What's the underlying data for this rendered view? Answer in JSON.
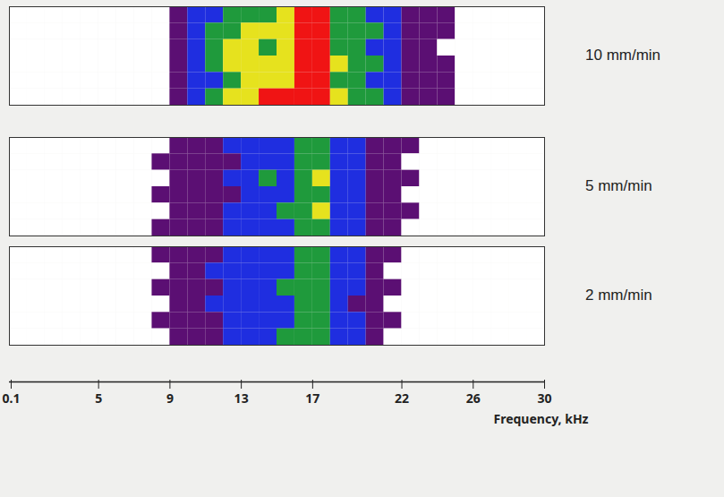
{
  "chart_data": {
    "type": "heatmap",
    "xlabel": "Frequency, kHz",
    "xlim": [
      0,
      30
    ],
    "xticks": [
      0.1,
      5,
      9,
      13,
      17,
      22,
      26,
      30
    ],
    "frequency_bins": [
      0,
      1,
      2,
      3,
      4,
      5,
      6,
      7,
      8,
      9,
      10,
      11,
      12,
      13,
      14,
      15,
      16,
      17,
      18,
      19,
      20,
      21,
      22,
      23,
      24,
      25,
      26,
      27,
      28,
      29,
      30
    ],
    "levels": [
      0,
      1,
      2,
      3,
      4,
      5
    ],
    "colors": [
      "#ffffff",
      "#5b0f73",
      "#1f2ee0",
      "#1f9a3c",
      "#e6e21e",
      "#f01414"
    ],
    "panels": [
      {
        "label": "10 mm/min",
        "cells": [
          [
            0,
            0,
            0,
            0,
            0,
            0,
            0,
            0,
            0,
            1,
            2,
            2,
            3,
            3,
            3,
            4,
            5,
            5,
            3,
            3,
            2,
            2,
            1,
            1,
            1,
            0,
            0,
            0,
            0,
            0
          ],
          [
            0,
            0,
            0,
            0,
            0,
            0,
            0,
            0,
            0,
            1,
            2,
            3,
            3,
            4,
            4,
            4,
            5,
            5,
            3,
            3,
            3,
            2,
            1,
            1,
            1,
            0,
            0,
            0,
            0,
            0
          ],
          [
            0,
            0,
            0,
            0,
            0,
            0,
            0,
            0,
            0,
            1,
            2,
            3,
            4,
            4,
            3,
            4,
            5,
            5,
            3,
            3,
            2,
            2,
            1,
            1,
            0,
            0,
            0,
            0,
            0,
            0
          ],
          [
            0,
            0,
            0,
            0,
            0,
            0,
            0,
            0,
            0,
            1,
            2,
            3,
            4,
            4,
            4,
            4,
            5,
            5,
            4,
            3,
            3,
            2,
            1,
            1,
            1,
            0,
            0,
            0,
            0,
            0
          ],
          [
            0,
            0,
            0,
            0,
            0,
            0,
            0,
            0,
            0,
            1,
            2,
            2,
            3,
            4,
            4,
            4,
            5,
            5,
            3,
            3,
            2,
            2,
            1,
            1,
            1,
            0,
            0,
            0,
            0,
            0
          ],
          [
            0,
            0,
            0,
            0,
            0,
            0,
            0,
            0,
            0,
            1,
            2,
            3,
            4,
            4,
            5,
            5,
            5,
            5,
            4,
            3,
            3,
            2,
            1,
            1,
            1,
            0,
            0,
            0,
            0,
            0
          ]
        ]
      },
      {
        "label": "5 mm/min",
        "cells": [
          [
            0,
            0,
            0,
            0,
            0,
            0,
            0,
            0,
            0,
            1,
            1,
            1,
            2,
            2,
            2,
            2,
            3,
            3,
            2,
            2,
            1,
            1,
            1,
            0,
            0,
            0,
            0,
            0,
            0,
            0
          ],
          [
            0,
            0,
            0,
            0,
            0,
            0,
            0,
            0,
            1,
            1,
            1,
            1,
            1,
            2,
            2,
            2,
            3,
            3,
            2,
            2,
            1,
            1,
            0,
            0,
            0,
            0,
            0,
            0,
            0,
            0
          ],
          [
            0,
            0,
            0,
            0,
            0,
            0,
            0,
            0,
            0,
            1,
            1,
            1,
            2,
            2,
            3,
            2,
            3,
            4,
            2,
            2,
            1,
            1,
            1,
            0,
            0,
            0,
            0,
            0,
            0,
            0
          ],
          [
            0,
            0,
            0,
            0,
            0,
            0,
            0,
            0,
            1,
            1,
            1,
            1,
            1,
            2,
            2,
            2,
            3,
            3,
            2,
            2,
            1,
            1,
            0,
            0,
            0,
            0,
            0,
            0,
            0,
            0
          ],
          [
            0,
            0,
            0,
            0,
            0,
            0,
            0,
            0,
            0,
            1,
            1,
            1,
            2,
            2,
            2,
            3,
            3,
            4,
            2,
            2,
            1,
            1,
            1,
            0,
            0,
            0,
            0,
            0,
            0,
            0
          ],
          [
            0,
            0,
            0,
            0,
            0,
            0,
            0,
            0,
            1,
            1,
            1,
            1,
            2,
            2,
            2,
            2,
            3,
            3,
            2,
            2,
            1,
            1,
            0,
            0,
            0,
            0,
            0,
            0,
            0,
            0
          ]
        ]
      },
      {
        "label": "2 mm/min",
        "cells": [
          [
            0,
            0,
            0,
            0,
            0,
            0,
            0,
            0,
            1,
            1,
            1,
            1,
            2,
            2,
            2,
            2,
            3,
            3,
            2,
            2,
            1,
            1,
            0,
            0,
            0,
            0,
            0,
            0,
            0,
            0
          ],
          [
            0,
            0,
            0,
            0,
            0,
            0,
            0,
            0,
            0,
            1,
            1,
            2,
            2,
            2,
            2,
            2,
            3,
            3,
            2,
            2,
            1,
            0,
            0,
            0,
            0,
            0,
            0,
            0,
            0,
            0
          ],
          [
            0,
            0,
            0,
            0,
            0,
            0,
            0,
            0,
            1,
            1,
            1,
            1,
            2,
            2,
            2,
            3,
            3,
            3,
            2,
            2,
            1,
            1,
            0,
            0,
            0,
            0,
            0,
            0,
            0,
            0
          ],
          [
            0,
            0,
            0,
            0,
            0,
            0,
            0,
            0,
            0,
            1,
            1,
            2,
            2,
            2,
            2,
            2,
            3,
            3,
            2,
            1,
            1,
            0,
            0,
            0,
            0,
            0,
            0,
            0,
            0,
            0
          ],
          [
            0,
            0,
            0,
            0,
            0,
            0,
            0,
            0,
            1,
            1,
            1,
            1,
            2,
            2,
            2,
            2,
            3,
            3,
            2,
            2,
            1,
            1,
            0,
            0,
            0,
            0,
            0,
            0,
            0,
            0
          ],
          [
            0,
            0,
            0,
            0,
            0,
            0,
            0,
            0,
            0,
            1,
            1,
            1,
            2,
            2,
            2,
            3,
            3,
            3,
            2,
            2,
            1,
            0,
            0,
            0,
            0,
            0,
            0,
            0,
            0,
            0
          ]
        ]
      }
    ]
  }
}
